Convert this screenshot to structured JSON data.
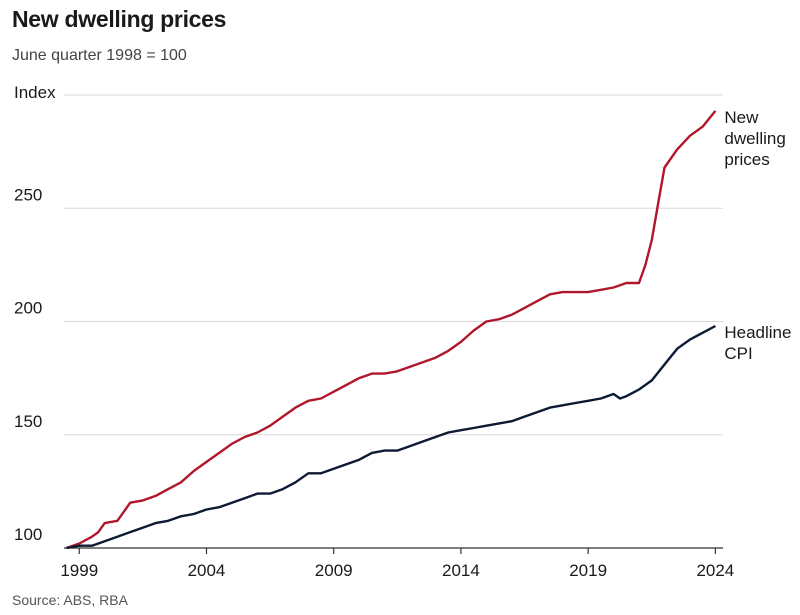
{
  "title": "New dwelling prices",
  "subtitle": "June quarter 1998 = 100",
  "source": "Source: ABS, RBA",
  "chart_data": {
    "type": "line",
    "ylabel": "Index",
    "ylim": [
      100,
      300
    ],
    "yticks": [
      100,
      150,
      200,
      250
    ],
    "xlim": [
      1998.4,
      2024.3
    ],
    "xticks": [
      1999,
      2004,
      2009,
      2014,
      2019,
      2024
    ],
    "grid": true,
    "series": [
      {
        "name": "New dwelling prices",
        "label_lines": [
          "New",
          "dwelling",
          "prices"
        ],
        "color": "#b0172a",
        "x": [
          1998.5,
          1999.0,
          1999.5,
          1999.75,
          2000.0,
          2000.5,
          2001.0,
          2001.5,
          2002.0,
          2002.5,
          2003.0,
          2003.5,
          2004.0,
          2004.5,
          2005.0,
          2005.5,
          2006.0,
          2006.5,
          2007.0,
          2007.5,
          2008.0,
          2008.5,
          2009.0,
          2009.5,
          2010.0,
          2010.5,
          2011.0,
          2011.5,
          2012.0,
          2012.5,
          2013.0,
          2013.5,
          2014.0,
          2014.5,
          2015.0,
          2015.5,
          2016.0,
          2016.5,
          2017.0,
          2017.5,
          2018.0,
          2018.5,
          2019.0,
          2019.5,
          2020.0,
          2020.5,
          2021.0,
          2021.25,
          2021.5,
          2021.75,
          2022.0,
          2022.5,
          2023.0,
          2023.5,
          2024.0
        ],
        "values": [
          100,
          102,
          105,
          107,
          111,
          112,
          120,
          121,
          123,
          126,
          129,
          134,
          138,
          142,
          146,
          149,
          151,
          154,
          158,
          162,
          165,
          166,
          169,
          172,
          175,
          177,
          177,
          178,
          180,
          182,
          184,
          187,
          191,
          196,
          200,
          201,
          203,
          206,
          209,
          212,
          213,
          213,
          213,
          214,
          215,
          217,
          217,
          225,
          236,
          252,
          268,
          276,
          282,
          286,
          293
        ]
      },
      {
        "name": "Headline CPI",
        "label_lines": [
          "Headline",
          "CPI"
        ],
        "color": "#0c1a33",
        "x": [
          1998.5,
          1999.0,
          1999.5,
          2000.0,
          2000.5,
          2001.0,
          2001.5,
          2002.0,
          2002.5,
          2003.0,
          2003.5,
          2004.0,
          2004.5,
          2005.0,
          2005.5,
          2006.0,
          2006.5,
          2007.0,
          2007.5,
          2008.0,
          2008.5,
          2009.0,
          2009.5,
          2010.0,
          2010.5,
          2011.0,
          2011.5,
          2012.0,
          2012.5,
          2013.0,
          2013.5,
          2014.0,
          2014.5,
          2015.0,
          2015.5,
          2016.0,
          2016.5,
          2017.0,
          2017.5,
          2018.0,
          2018.5,
          2019.0,
          2019.5,
          2020.0,
          2020.25,
          2020.5,
          2021.0,
          2021.5,
          2022.0,
          2022.5,
          2023.0,
          2023.5,
          2024.0
        ],
        "values": [
          100,
          101,
          101,
          103,
          105,
          107,
          109,
          111,
          112,
          114,
          115,
          117,
          118,
          120,
          122,
          124,
          124,
          126,
          129,
          133,
          133,
          135,
          137,
          139,
          142,
          143,
          143,
          145,
          147,
          149,
          151,
          152,
          153,
          154,
          155,
          156,
          158,
          160,
          162,
          163,
          164,
          165,
          166,
          168,
          166,
          167,
          170,
          174,
          181,
          188,
          192,
          195,
          198
        ]
      }
    ]
  }
}
